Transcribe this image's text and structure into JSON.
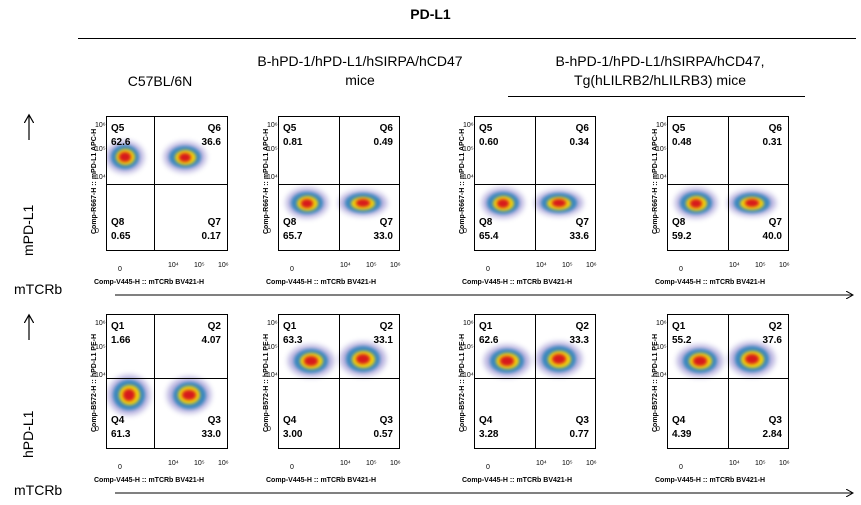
{
  "title": "PD-L1",
  "columns": [
    "C57BL/6N",
    "B-hPD-1/hPD-L1/hSIRPA/hCD47 mice",
    "B-hPD-1/hPD-L1/hSIRPA/hCD47, Tg(hLILRB2/hLILRB3) mice"
  ],
  "rows": [
    {
      "label": "mPD-L1",
      "x_label": "mTCRb",
      "y_axis": "Comp-R667-H :: mPD-L1 APC-H",
      "x_axis": "Comp-V445-H :: mTCRb BV421-H",
      "quadrant_names": [
        "Q5",
        "Q6",
        "Q8",
        "Q7"
      ],
      "plots": [
        {
          "values": [
            "62.6",
            "36.6",
            "0.65",
            "0.17"
          ]
        },
        {
          "values": [
            "0.81",
            "0.49",
            "65.7",
            "33.0"
          ]
        },
        {
          "values": [
            "0.60",
            "0.34",
            "65.4",
            "33.6"
          ]
        },
        {
          "values": [
            "0.48",
            "0.31",
            "59.2",
            "40.0"
          ]
        }
      ]
    },
    {
      "label": "hPD-L1",
      "x_label": "mTCRb",
      "y_axis": "Comp-B572-H :: hPD-L1 PE-H",
      "x_axis": "Comp-V445-H :: mTCRb BV421-H",
      "quadrant_names": [
        "Q1",
        "Q2",
        "Q4",
        "Q3"
      ],
      "plots": [
        {
          "values": [
            "1.66",
            "4.07",
            "61.3",
            "33.0"
          ]
        },
        {
          "values": [
            "63.3",
            "33.1",
            "3.00",
            "0.57"
          ]
        },
        {
          "values": [
            "62.6",
            "33.3",
            "3.28",
            "0.77"
          ]
        },
        {
          "values": [
            "55.2",
            "37.6",
            "4.39",
            "2.84"
          ]
        }
      ]
    }
  ],
  "x_ticks": [
    "0",
    "10⁴",
    "10⁵",
    "10⁶"
  ],
  "y_ticks": [
    "10⁶",
    "10⁵",
    "10⁴",
    "0"
  ],
  "colors": {
    "density_high": "#d7191c",
    "density_mid": "#ffd700",
    "density_low": "#2b83ba",
    "sparse": "#2a1aa0"
  }
}
